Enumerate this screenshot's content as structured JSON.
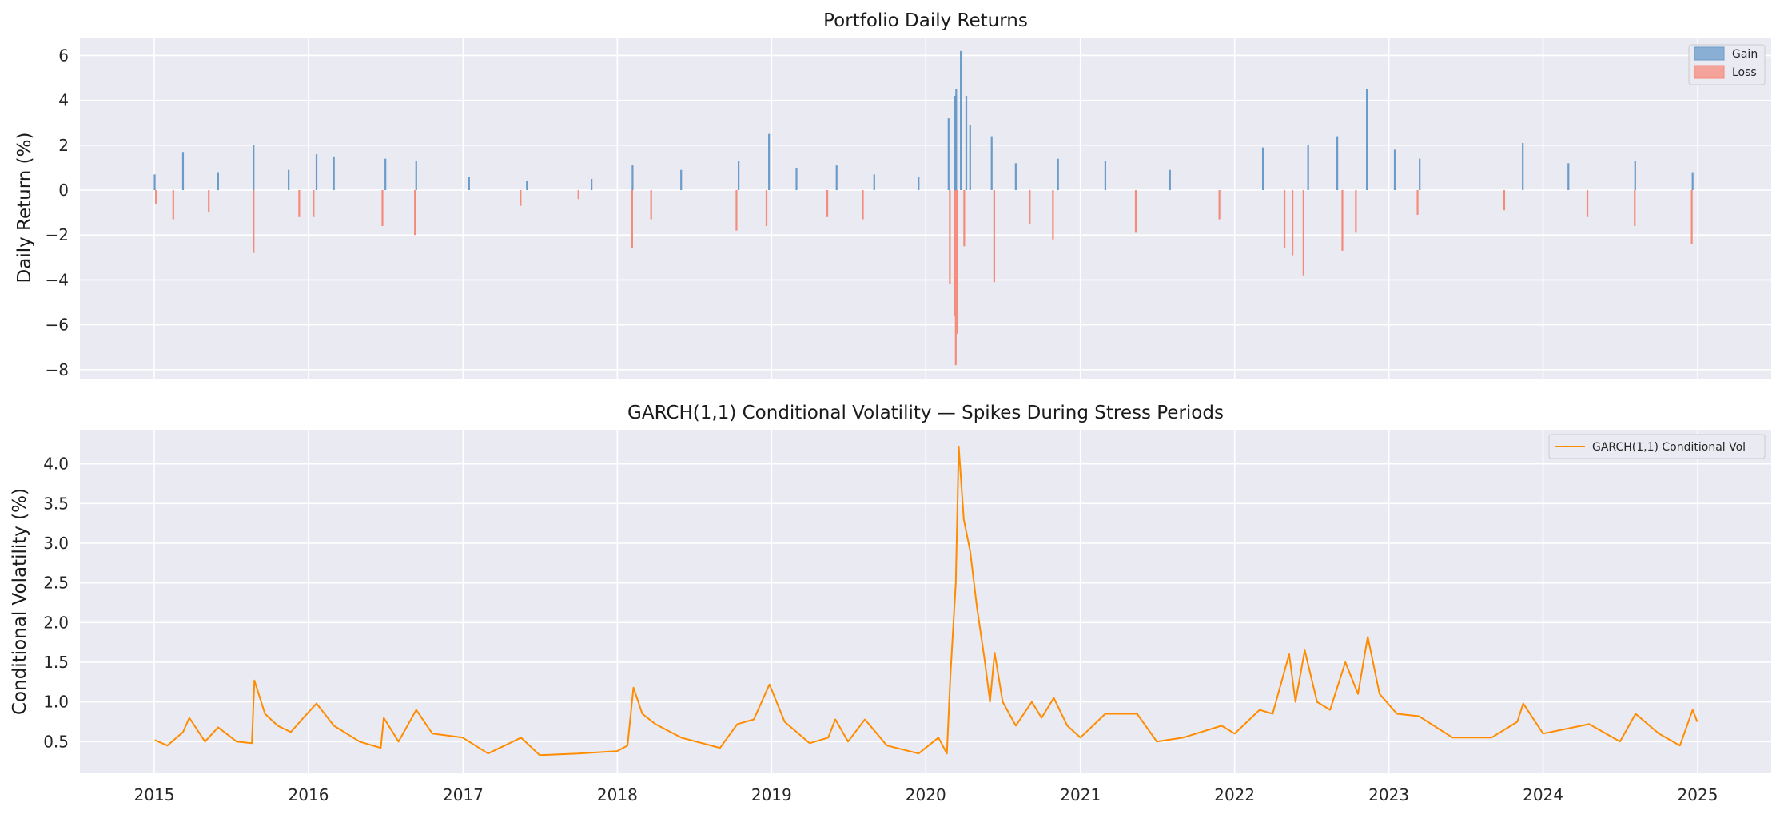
{
  "chart_data": [
    {
      "type": "bar",
      "title": "Portfolio Daily Returns",
      "xlabel": "",
      "ylabel": "Daily Return (%)",
      "ylim": [
        -8.4,
        6.8
      ],
      "yticks": [
        6,
        4,
        2,
        0,
        -2,
        -4,
        -6,
        -8
      ],
      "ytick_labels": [
        "6",
        "4",
        "2",
        "0",
        "−2",
        "−4",
        "−6",
        "−8"
      ],
      "xlim": [
        "2014-07-09",
        "2025-06-24"
      ],
      "grid": true,
      "legend_placement": "top-right",
      "series": [
        {
          "name": "Gain",
          "color": "#6a9bc9",
          "points": [
            [
              "2015-01-02",
              0.7
            ],
            [
              "2015-03-10",
              1.7
            ],
            [
              "2015-06-01",
              0.8
            ],
            [
              "2015-08-24",
              2.0
            ],
            [
              "2015-11-15",
              0.9
            ],
            [
              "2016-01-20",
              1.6
            ],
            [
              "2016-03-01",
              1.5
            ],
            [
              "2016-07-01",
              1.4
            ],
            [
              "2016-09-12",
              1.3
            ],
            [
              "2017-01-15",
              0.6
            ],
            [
              "2017-06-01",
              0.4
            ],
            [
              "2017-11-01",
              0.5
            ],
            [
              "2018-02-06",
              1.1
            ],
            [
              "2018-06-01",
              0.9
            ],
            [
              "2018-10-15",
              1.3
            ],
            [
              "2018-12-26",
              2.5
            ],
            [
              "2019-03-01",
              1.0
            ],
            [
              "2019-06-04",
              1.1
            ],
            [
              "2019-09-01",
              0.7
            ],
            [
              "2019-12-15",
              0.6
            ],
            [
              "2020-02-24",
              3.2
            ],
            [
              "2020-03-10",
              4.2
            ],
            [
              "2020-03-13",
              4.5
            ],
            [
              "2020-03-24",
              6.2
            ],
            [
              "2020-04-06",
              4.2
            ],
            [
              "2020-04-15",
              2.9
            ],
            [
              "2020-06-05",
              2.4
            ],
            [
              "2020-08-01",
              1.2
            ],
            [
              "2020-11-09",
              1.4
            ],
            [
              "2021-03-01",
              1.3
            ],
            [
              "2021-08-01",
              0.9
            ],
            [
              "2022-03-09",
              1.9
            ],
            [
              "2022-06-24",
              2.0
            ],
            [
              "2022-09-01",
              2.4
            ],
            [
              "2022-11-10",
              4.5
            ],
            [
              "2023-01-15",
              1.8
            ],
            [
              "2023-03-15",
              1.4
            ],
            [
              "2023-11-14",
              2.1
            ],
            [
              "2024-03-01",
              1.2
            ],
            [
              "2024-08-06",
              1.3
            ],
            [
              "2024-12-20",
              0.8
            ]
          ]
        },
        {
          "name": "Loss",
          "color": "#f58b7b",
          "points": [
            [
              "2015-01-05",
              -0.6
            ],
            [
              "2015-02-15",
              -1.3
            ],
            [
              "2015-05-10",
              -1.0
            ],
            [
              "2015-08-24",
              -2.8
            ],
            [
              "2015-12-10",
              -1.2
            ],
            [
              "2016-01-13",
              -1.2
            ],
            [
              "2016-06-24",
              -1.6
            ],
            [
              "2016-09-09",
              -2.0
            ],
            [
              "2017-05-17",
              -0.7
            ],
            [
              "2017-10-01",
              -0.4
            ],
            [
              "2018-02-05",
              -2.6
            ],
            [
              "2018-03-22",
              -1.3
            ],
            [
              "2018-10-10",
              -1.8
            ],
            [
              "2018-12-20",
              -1.6
            ],
            [
              "2019-05-13",
              -1.2
            ],
            [
              "2019-08-05",
              -1.3
            ],
            [
              "2020-02-27",
              -4.2
            ],
            [
              "2020-03-09",
              -5.6
            ],
            [
              "2020-03-12",
              -7.8
            ],
            [
              "2020-03-16",
              -6.4
            ],
            [
              "2020-04-01",
              -2.5
            ],
            [
              "2020-06-11",
              -4.1
            ],
            [
              "2020-09-03",
              -1.5
            ],
            [
              "2020-10-28",
              -2.2
            ],
            [
              "2021-05-12",
              -1.9
            ],
            [
              "2021-11-26",
              -1.3
            ],
            [
              "2022-04-29",
              -2.6
            ],
            [
              "2022-05-18",
              -2.9
            ],
            [
              "2022-06-13",
              -3.8
            ],
            [
              "2022-09-13",
              -2.7
            ],
            [
              "2022-10-15",
              -1.9
            ],
            [
              "2023-03-10",
              -1.1
            ],
            [
              "2023-10-01",
              -0.9
            ],
            [
              "2024-04-15",
              -1.2
            ],
            [
              "2024-08-05",
              -1.6
            ],
            [
              "2024-12-18",
              -2.4
            ]
          ]
        }
      ]
    },
    {
      "type": "line",
      "title": "GARCH(1,1) Conditional Volatility — Spikes During Stress Periods",
      "xlabel": "",
      "ylabel": "Conditional Volatility (%)",
      "ylim": [
        0.1,
        4.43
      ],
      "yticks": [
        4.0,
        3.5,
        3.0,
        2.5,
        2.0,
        1.5,
        1.0,
        0.5
      ],
      "ytick_labels": [
        "4.0",
        "3.5",
        "3.0",
        "2.5",
        "2.0",
        "1.5",
        "1.0",
        "0.5"
      ],
      "xlim": [
        "2014-07-09",
        "2025-06-24"
      ],
      "xticks": [
        "2015",
        "2016",
        "2017",
        "2018",
        "2019",
        "2020",
        "2021",
        "2022",
        "2023",
        "2024",
        "2025"
      ],
      "grid": true,
      "legend_placement": "top-right",
      "series": [
        {
          "name": "GARCH(1,1) Conditional Vol",
          "color": "#ff8c00",
          "points": [
            [
              "2015-01-02",
              0.52
            ],
            [
              "2015-02-01",
              0.45
            ],
            [
              "2015-03-10",
              0.62
            ],
            [
              "2015-03-25",
              0.8
            ],
            [
              "2015-05-01",
              0.5
            ],
            [
              "2015-06-01",
              0.68
            ],
            [
              "2015-07-15",
              0.5
            ],
            [
              "2015-08-20",
              0.48
            ],
            [
              "2015-08-26",
              1.27
            ],
            [
              "2015-09-20",
              0.85
            ],
            [
              "2015-10-20",
              0.7
            ],
            [
              "2015-11-20",
              0.62
            ],
            [
              "2015-12-20",
              0.8
            ],
            [
              "2016-01-20",
              0.98
            ],
            [
              "2016-03-01",
              0.7
            ],
            [
              "2016-05-01",
              0.5
            ],
            [
              "2016-06-20",
              0.42
            ],
            [
              "2016-06-27",
              0.8
            ],
            [
              "2016-08-01",
              0.5
            ],
            [
              "2016-09-12",
              0.9
            ],
            [
              "2016-10-20",
              0.6
            ],
            [
              "2016-12-31",
              0.55
            ],
            [
              "2017-03-01",
              0.35
            ],
            [
              "2017-05-18",
              0.55
            ],
            [
              "2017-07-01",
              0.33
            ],
            [
              "2017-10-01",
              0.35
            ],
            [
              "2017-12-31",
              0.38
            ],
            [
              "2018-01-25",
              0.45
            ],
            [
              "2018-02-08",
              1.18
            ],
            [
              "2018-03-01",
              0.85
            ],
            [
              "2018-04-01",
              0.72
            ],
            [
              "2018-06-01",
              0.55
            ],
            [
              "2018-09-01",
              0.42
            ],
            [
              "2018-10-12",
              0.72
            ],
            [
              "2018-11-20",
              0.78
            ],
            [
              "2018-12-27",
              1.22
            ],
            [
              "2019-02-01",
              0.75
            ],
            [
              "2019-04-01",
              0.48
            ],
            [
              "2019-05-15",
              0.55
            ],
            [
              "2019-06-01",
              0.78
            ],
            [
              "2019-07-01",
              0.5
            ],
            [
              "2019-08-10",
              0.78
            ],
            [
              "2019-10-01",
              0.45
            ],
            [
              "2019-12-15",
              0.35
            ],
            [
              "2020-01-31",
              0.55
            ],
            [
              "2020-02-20",
              0.35
            ],
            [
              "2020-02-28",
              1.3
            ],
            [
              "2020-03-12",
              2.5
            ],
            [
              "2020-03-19",
              4.22
            ],
            [
              "2020-03-31",
              3.3
            ],
            [
              "2020-04-15",
              2.9
            ],
            [
              "2020-05-01",
              2.2
            ],
            [
              "2020-05-20",
              1.5
            ],
            [
              "2020-06-01",
              1.0
            ],
            [
              "2020-06-12",
              1.62
            ],
            [
              "2020-07-01",
              1.0
            ],
            [
              "2020-08-01",
              0.7
            ],
            [
              "2020-09-08",
              1.0
            ],
            [
              "2020-10-01",
              0.8
            ],
            [
              "2020-10-30",
              1.05
            ],
            [
              "2020-12-01",
              0.7
            ],
            [
              "2021-01-01",
              0.55
            ],
            [
              "2021-03-01",
              0.85
            ],
            [
              "2021-05-15",
              0.85
            ],
            [
              "2021-07-01",
              0.5
            ],
            [
              "2021-09-01",
              0.55
            ],
            [
              "2021-12-01",
              0.7
            ],
            [
              "2022-01-01",
              0.6
            ],
            [
              "2022-03-01",
              0.9
            ],
            [
              "2022-04-01",
              0.85
            ],
            [
              "2022-05-10",
              1.6
            ],
            [
              "2022-05-25",
              1.0
            ],
            [
              "2022-06-16",
              1.65
            ],
            [
              "2022-07-15",
              1.0
            ],
            [
              "2022-08-15",
              0.9
            ],
            [
              "2022-09-20",
              1.5
            ],
            [
              "2022-10-20",
              1.1
            ],
            [
              "2022-11-12",
              1.82
            ],
            [
              "2022-12-10",
              1.1
            ],
            [
              "2023-01-20",
              0.85
            ],
            [
              "2023-03-13",
              0.82
            ],
            [
              "2023-06-01",
              0.55
            ],
            [
              "2023-09-01",
              0.55
            ],
            [
              "2023-11-01",
              0.75
            ],
            [
              "2023-11-15",
              0.98
            ],
            [
              "2024-01-01",
              0.6
            ],
            [
              "2024-04-19",
              0.72
            ],
            [
              "2024-07-01",
              0.5
            ],
            [
              "2024-08-07",
              0.85
            ],
            [
              "2024-10-01",
              0.6
            ],
            [
              "2024-11-20",
              0.45
            ],
            [
              "2024-12-20",
              0.9
            ],
            [
              "2024-12-31",
              0.75
            ]
          ]
        }
      ]
    }
  ]
}
